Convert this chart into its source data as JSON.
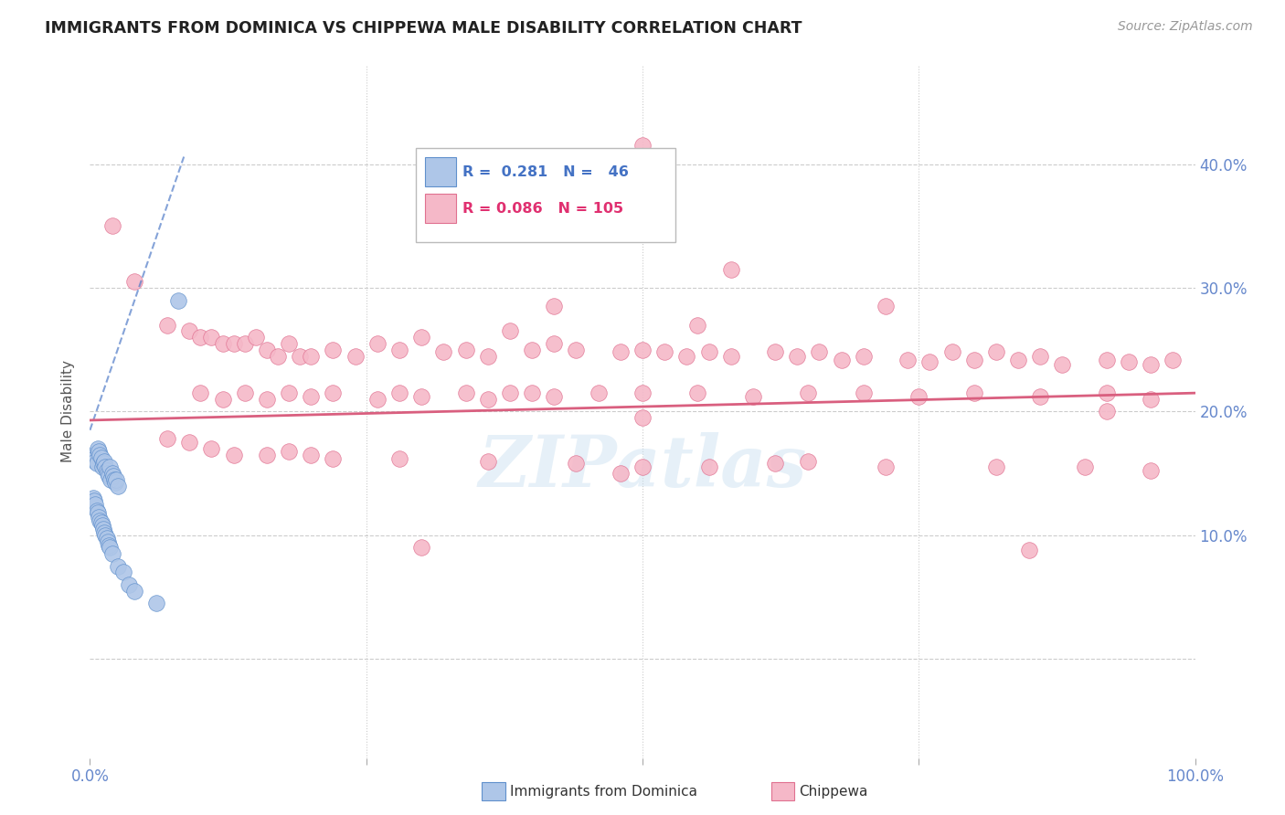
{
  "title": "IMMIGRANTS FROM DOMINICA VS CHIPPEWA MALE DISABILITY CORRELATION CHART",
  "source": "Source: ZipAtlas.com",
  "ylabel": "Male Disability",
  "watermark": "ZIPatlas",
  "blue_R": 0.281,
  "blue_N": 46,
  "pink_R": 0.086,
  "pink_N": 105,
  "xlim": [
    0.0,
    1.0
  ],
  "ylim": [
    -0.08,
    0.48
  ],
  "xticks": [
    0.0,
    0.25,
    0.5,
    0.75,
    1.0
  ],
  "xtick_labels": [
    "0.0%",
    "",
    "",
    "",
    "100.0%"
  ],
  "yticks": [
    0.0,
    0.1,
    0.2,
    0.3,
    0.4
  ],
  "ytick_labels": [
    "",
    "10.0%",
    "20.0%",
    "30.0%",
    "40.0%"
  ],
  "blue_color": "#aec6e8",
  "pink_color": "#f5b8c8",
  "blue_edge_color": "#6090cc",
  "pink_edge_color": "#e07090",
  "blue_line_color": "#4472c4",
  "pink_line_color": "#d95f7f",
  "grid_color": "#cccccc",
  "tick_color": "#6688cc",
  "blue_points_x": [
    0.003,
    0.004,
    0.005,
    0.006,
    0.007,
    0.008,
    0.009,
    0.01,
    0.011,
    0.012,
    0.013,
    0.014,
    0.015,
    0.016,
    0.017,
    0.018,
    0.019,
    0.02,
    0.021,
    0.022,
    0.023,
    0.024,
    0.025,
    0.003,
    0.004,
    0.005,
    0.006,
    0.007,
    0.008,
    0.009,
    0.01,
    0.011,
    0.012,
    0.013,
    0.014,
    0.015,
    0.016,
    0.017,
    0.018,
    0.02,
    0.025,
    0.03,
    0.035,
    0.04,
    0.06,
    0.08
  ],
  "blue_points_y": [
    0.165,
    0.162,
    0.16,
    0.158,
    0.17,
    0.168,
    0.165,
    0.163,
    0.155,
    0.158,
    0.16,
    0.155,
    0.152,
    0.15,
    0.148,
    0.155,
    0.145,
    0.15,
    0.148,
    0.145,
    0.143,
    0.145,
    0.14,
    0.13,
    0.128,
    0.125,
    0.12,
    0.118,
    0.115,
    0.112,
    0.11,
    0.108,
    0.105,
    0.102,
    0.1,
    0.098,
    0.095,
    0.092,
    0.09,
    0.085,
    0.075,
    0.07,
    0.06,
    0.055,
    0.045,
    0.29
  ],
  "pink_points_x": [
    0.02,
    0.04,
    0.07,
    0.09,
    0.1,
    0.11,
    0.12,
    0.13,
    0.14,
    0.15,
    0.16,
    0.17,
    0.18,
    0.19,
    0.2,
    0.22,
    0.24,
    0.26,
    0.28,
    0.3,
    0.32,
    0.34,
    0.36,
    0.38,
    0.4,
    0.42,
    0.44,
    0.48,
    0.5,
    0.52,
    0.54,
    0.56,
    0.58,
    0.62,
    0.64,
    0.66,
    0.68,
    0.7,
    0.74,
    0.76,
    0.78,
    0.8,
    0.82,
    0.84,
    0.86,
    0.88,
    0.92,
    0.94,
    0.96,
    0.98,
    0.1,
    0.12,
    0.14,
    0.16,
    0.18,
    0.2,
    0.22,
    0.26,
    0.28,
    0.3,
    0.34,
    0.36,
    0.38,
    0.4,
    0.42,
    0.46,
    0.5,
    0.55,
    0.6,
    0.65,
    0.7,
    0.75,
    0.8,
    0.86,
    0.92,
    0.96,
    0.07,
    0.09,
    0.11,
    0.13,
    0.16,
    0.18,
    0.2,
    0.22,
    0.28,
    0.36,
    0.44,
    0.5,
    0.56,
    0.62,
    0.72,
    0.82,
    0.9,
    0.96,
    0.5,
    0.55,
    0.58,
    0.42,
    0.72,
    0.85,
    0.65,
    0.5,
    0.92,
    0.3,
    0.48
  ],
  "pink_points_y": [
    0.35,
    0.305,
    0.27,
    0.265,
    0.26,
    0.26,
    0.255,
    0.255,
    0.255,
    0.26,
    0.25,
    0.245,
    0.255,
    0.245,
    0.245,
    0.25,
    0.245,
    0.255,
    0.25,
    0.26,
    0.248,
    0.25,
    0.245,
    0.265,
    0.25,
    0.255,
    0.25,
    0.248,
    0.25,
    0.248,
    0.245,
    0.248,
    0.245,
    0.248,
    0.245,
    0.248,
    0.242,
    0.245,
    0.242,
    0.24,
    0.248,
    0.242,
    0.248,
    0.242,
    0.245,
    0.238,
    0.242,
    0.24,
    0.238,
    0.242,
    0.215,
    0.21,
    0.215,
    0.21,
    0.215,
    0.212,
    0.215,
    0.21,
    0.215,
    0.212,
    0.215,
    0.21,
    0.215,
    0.215,
    0.212,
    0.215,
    0.215,
    0.215,
    0.212,
    0.215,
    0.215,
    0.212,
    0.215,
    0.212,
    0.215,
    0.21,
    0.178,
    0.175,
    0.17,
    0.165,
    0.165,
    0.168,
    0.165,
    0.162,
    0.162,
    0.16,
    0.158,
    0.155,
    0.155,
    0.158,
    0.155,
    0.155,
    0.155,
    0.152,
    0.195,
    0.27,
    0.315,
    0.285,
    0.285,
    0.088,
    0.16,
    0.415,
    0.2,
    0.09,
    0.15
  ]
}
